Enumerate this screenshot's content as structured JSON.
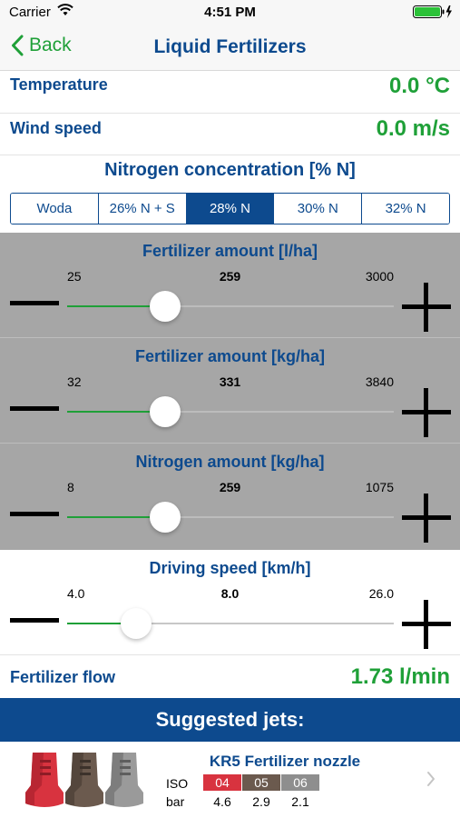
{
  "status": {
    "carrier": "Carrier",
    "time": "4:51 PM"
  },
  "nav": {
    "back_label": "Back",
    "title": "Liquid Fertilizers"
  },
  "temperature": {
    "label": "Temperature",
    "value": "0.0 °C"
  },
  "wind": {
    "label": "Wind speed",
    "value": "0.0 m/s"
  },
  "nitrogen_concentration": {
    "title": "Nitrogen concentration [% N]",
    "options": [
      "Woda",
      "26% N + S",
      "28% N",
      "30% N",
      "32% N"
    ],
    "selected_index": 2
  },
  "sliders": [
    {
      "title": "Fertilizer amount [l/ha]",
      "min": "25",
      "value": "259",
      "max": "3000",
      "level": 0.3
    },
    {
      "title": "Fertilizer amount [kg/ha]",
      "min": "32",
      "value": "331",
      "max": "3840",
      "level": 0.3
    },
    {
      "title": "Nitrogen amount [kg/ha]",
      "min": "8",
      "value": "259",
      "max": "1075",
      "level": 0.3
    },
    {
      "title": "Driving speed [km/h]",
      "min": "4.0",
      "value": "8.0",
      "max": "26.0",
      "level": 0.21
    }
  ],
  "flow": {
    "label": "Fertilizer flow",
    "value": "1.73 l/min"
  },
  "suggested": {
    "title": "Suggested jets:"
  },
  "jet": {
    "name": "KR5 Fertilizer nozzle",
    "iso_label": "ISO",
    "bar_label": "bar",
    "sizes": [
      {
        "iso": "04",
        "bar": "4.6",
        "color": "#d8333f"
      },
      {
        "iso": "05",
        "bar": "2.9",
        "color": "#6b5a4e"
      },
      {
        "iso": "06",
        "bar": "2.1",
        "color": "#8e8e8e"
      }
    ]
  },
  "colors": {
    "primary": "#0d4a8e",
    "accent": "#1fa038",
    "disabled_bg": "#a6a6a6"
  }
}
